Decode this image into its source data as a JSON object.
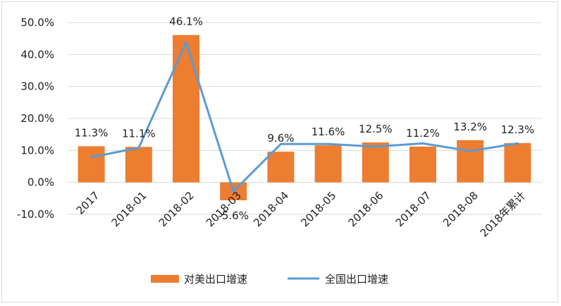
{
  "chart_data": {
    "type": "bar",
    "categories": [
      "2017",
      "2018-01",
      "2018-02",
      "2018-03",
      "2018-04",
      "2018-05",
      "2018-06",
      "2018-07",
      "2018-08",
      "2018年累计"
    ],
    "series": [
      {
        "name": "对美出口增速",
        "kind": "bar",
        "color": "#ED7D31",
        "values": [
          11.3,
          11.1,
          46.1,
          -5.6,
          9.6,
          11.6,
          12.5,
          11.2,
          13.2,
          12.3
        ],
        "labels": [
          "11.3%",
          "11.1%",
          "46.1%",
          "-5.6%",
          "9.6%",
          "11.6%",
          "12.5%",
          "11.2%",
          "13.2%",
          "12.3%"
        ]
      },
      {
        "name": "全国出口增速",
        "kind": "line",
        "color": "#5B9BD5",
        "values": [
          7.9,
          10.8,
          43.8,
          -2.8,
          12.0,
          12.0,
          11.2,
          12.2,
          9.8,
          12.2
        ]
      }
    ],
    "yticks": [
      "-10.0%",
      "0.0%",
      "10.0%",
      "20.0%",
      "30.0%",
      "40.0%",
      "50.0%"
    ],
    "ylim": [
      -10,
      50
    ],
    "grid": true,
    "legend_position": "bottom"
  }
}
